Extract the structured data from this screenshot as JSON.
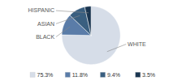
{
  "chart_data": {
    "type": "pie",
    "categories": [
      "WHITE",
      "BLACK",
      "ASIAN",
      "HISPANIC"
    ],
    "values": [
      75.3,
      11.8,
      9.4,
      3.5
    ],
    "value_labels": [
      "75.3%",
      "11.8%",
      "9.4%",
      "3.5%"
    ],
    "colors": [
      "#d6dde8",
      "#5a7ca8",
      "#3a5f80",
      "#1a3550"
    ],
    "legend": "bottom"
  }
}
